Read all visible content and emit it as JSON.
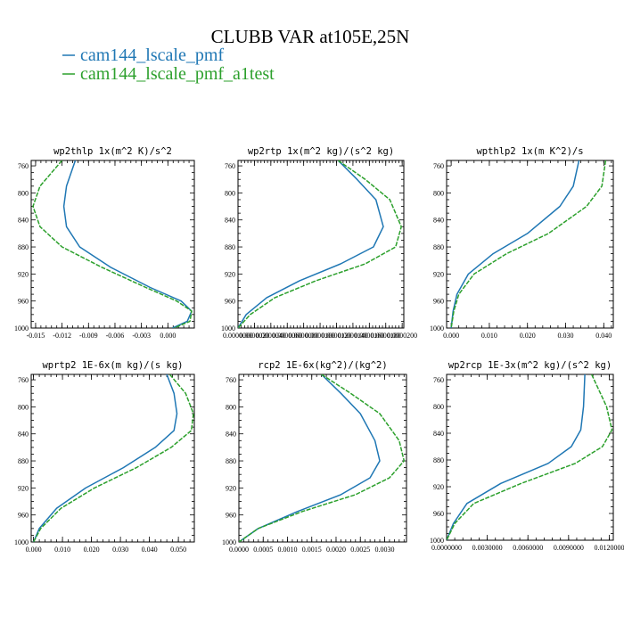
{
  "title": "CLUBB VAR at105E,25N",
  "colors": {
    "series1": "#1f77b4",
    "series2": "#2ca02c",
    "axis": "#000000"
  },
  "legend": [
    {
      "label": "cam144_lscale_pmf",
      "color": "#1f77b4"
    },
    {
      "label": "cam144_lscale_pmf_a1test",
      "color": "#2ca02c"
    }
  ],
  "chart_data": [
    {
      "type": "line",
      "title": "wp2thlp  1x(m^2 K)/s^2",
      "xlim": [
        -0.0155,
        0.003
      ],
      "ylim": [
        1000,
        752
      ],
      "y_reversed": true,
      "xticks": [
        -0.015,
        -0.012,
        -0.009,
        -0.006,
        -0.003,
        0.0
      ],
      "xtick_labels": [
        "-0.015",
        "-0.012",
        "-0.009",
        "-0.006",
        "-0.003",
        "0.000"
      ],
      "yticks": [
        760,
        800,
        840,
        880,
        920,
        960,
        1000
      ],
      "ytick_labels": [
        "760",
        "800",
        "840",
        "880",
        "920",
        "960",
        "1000"
      ],
      "series": [
        {
          "name": "cam144_lscale_pmf",
          "x": [
            -0.0105,
            -0.0115,
            -0.0118,
            -0.0115,
            -0.01,
            -0.0065,
            -0.002,
            0.0015,
            0.0027,
            0.0022,
            0.0005
          ],
          "y": [
            752,
            790,
            820,
            850,
            880,
            910,
            940,
            960,
            975,
            990,
            1000
          ]
        },
        {
          "name": "cam144_lscale_pmf_a1test",
          "x": [
            -0.012,
            -0.0145,
            -0.0153,
            -0.0145,
            -0.012,
            -0.0075,
            -0.0025,
            0.001,
            0.0027,
            0.0025,
            0.0007
          ],
          "y": [
            752,
            790,
            820,
            850,
            880,
            910,
            940,
            960,
            975,
            990,
            1000
          ]
        }
      ]
    },
    {
      "type": "line",
      "title": "wp2rtp  1x(m^2 kg)/(s^2 kg)",
      "xlim": [
        0.0,
        2.02e-05
      ],
      "ylim": [
        1000,
        752
      ],
      "y_reversed": true,
      "xticks": [
        0.0,
        2e-06,
        4e-06,
        6e-06,
        8e-06,
        1e-05,
        1.2e-05,
        1.4e-05,
        1.6e-05,
        1.8e-05,
        2e-05
      ],
      "xtick_labels": [
        "0.0000000",
        "0.0000020",
        "0.0000040",
        "0.0000060",
        "0.0000080",
        "0.0000100",
        "0.0000120",
        "0.0000140",
        "0.0000160",
        "0.0000180",
        "0.0000200"
      ],
      "yticks": [
        760,
        800,
        840,
        880,
        920,
        960,
        1000
      ],
      "ytick_labels": [
        "760",
        "800",
        "840",
        "880",
        "920",
        "960",
        "1000"
      ],
      "series": [
        {
          "name": "cam144_lscale_pmf",
          "x": [
            1.22e-05,
            1.45e-05,
            1.68e-05,
            1.77e-05,
            1.65e-05,
            1.25e-05,
            7.5e-06,
            3.5e-06,
            1e-06,
            0.0
          ],
          "y": [
            752,
            780,
            810,
            850,
            880,
            905,
            930,
            955,
            980,
            1000
          ]
        },
        {
          "name": "cam144_lscale_pmf_a1test",
          "x": [
            1.22e-05,
            1.55e-05,
            1.85e-05,
            1.99e-05,
            1.92e-05,
            1.55e-05,
            9.5e-06,
            4.5e-06,
            1.5e-06,
            0.0
          ],
          "y": [
            752,
            780,
            810,
            850,
            880,
            905,
            930,
            955,
            980,
            1000
          ]
        }
      ]
    },
    {
      "type": "line",
      "title": "wpthlp2  1x(m K^2)/s",
      "xlim": [
        -0.0012,
        0.0425
      ],
      "ylim": [
        1000,
        752
      ],
      "y_reversed": true,
      "xticks": [
        0.0,
        0.01,
        0.02,
        0.03,
        0.04
      ],
      "xtick_labels": [
        "0.000",
        "0.010",
        "0.020",
        "0.030",
        "0.040"
      ],
      "yticks": [
        760,
        800,
        840,
        880,
        920,
        960,
        1000
      ],
      "ytick_labels": [
        "760",
        "800",
        "840",
        "880",
        "920",
        "960",
        "1000"
      ],
      "series": [
        {
          "name": "cam144_lscale_pmf",
          "x": [
            0.0335,
            0.032,
            0.0285,
            0.02,
            0.011,
            0.0045,
            0.0015,
            0.0005,
            0.0
          ],
          "y": [
            752,
            790,
            820,
            860,
            890,
            920,
            950,
            975,
            1000
          ]
        },
        {
          "name": "cam144_lscale_pmf_a1test",
          "x": [
            0.0405,
            0.0395,
            0.0355,
            0.0255,
            0.0145,
            0.006,
            0.002,
            0.0007,
            0.0
          ],
          "y": [
            752,
            790,
            820,
            860,
            890,
            920,
            950,
            975,
            1000
          ]
        }
      ]
    },
    {
      "type": "line",
      "title": "wprtp2  1E-6x(m kg)/(s kg)",
      "xlim": [
        -0.0008,
        0.0555
      ],
      "ylim": [
        1000,
        752
      ],
      "y_reversed": true,
      "xticks": [
        0.0,
        0.01,
        0.02,
        0.03,
        0.04,
        0.05
      ],
      "xtick_labels": [
        "0.000",
        "0.010",
        "0.020",
        "0.030",
        "0.040",
        "0.050"
      ],
      "yticks": [
        760,
        800,
        840,
        880,
        920,
        960,
        1000
      ],
      "ytick_labels": [
        "760",
        "800",
        "840",
        "880",
        "920",
        "960",
        "1000"
      ],
      "series": [
        {
          "name": "cam144_lscale_pmf",
          "x": [
            0.046,
            0.0485,
            0.0495,
            0.0485,
            0.042,
            0.031,
            0.018,
            0.008,
            0.002,
            0.0
          ],
          "y": [
            752,
            780,
            810,
            835,
            860,
            890,
            920,
            950,
            980,
            1000
          ]
        },
        {
          "name": "cam144_lscale_pmf_a1test",
          "x": [
            0.047,
            0.0525,
            0.0552,
            0.0545,
            0.0475,
            0.0355,
            0.021,
            0.0095,
            0.0025,
            0.0
          ],
          "y": [
            752,
            780,
            810,
            835,
            860,
            890,
            920,
            950,
            980,
            1000
          ]
        }
      ]
    },
    {
      "type": "line",
      "title": "rcp2  1E-6x(kg^2)/(kg^2)",
      "xlim": [
        0.0,
        0.00345
      ],
      "ylim": [
        1000,
        752
      ],
      "y_reversed": true,
      "xticks": [
        0.0,
        0.0005,
        0.001,
        0.0015,
        0.002,
        0.0025,
        0.003
      ],
      "xtick_labels": [
        "0.0000",
        "0.0005",
        "0.0010",
        "0.0015",
        "0.0020",
        "0.0025",
        "0.0030"
      ],
      "yticks": [
        760,
        800,
        840,
        880,
        920,
        960,
        1000
      ],
      "ytick_labels": [
        "760",
        "800",
        "840",
        "880",
        "920",
        "960",
        "1000"
      ],
      "series": [
        {
          "name": "cam144_lscale_pmf",
          "x": [
            0.0017,
            0.0021,
            0.0025,
            0.0028,
            0.0029,
            0.0027,
            0.0021,
            0.0012,
            0.0004,
            0.0
          ],
          "y": [
            752,
            780,
            810,
            850,
            880,
            905,
            930,
            955,
            980,
            1000
          ]
        },
        {
          "name": "cam144_lscale_pmf_a1test",
          "x": [
            0.0017,
            0.0023,
            0.0029,
            0.0033,
            0.0034,
            0.0031,
            0.0024,
            0.0013,
            0.0004,
            0.0
          ],
          "y": [
            752,
            780,
            810,
            850,
            880,
            905,
            930,
            955,
            980,
            1000
          ]
        }
      ]
    },
    {
      "type": "line",
      "title": "wp2rcp  1E-3x(m^2 kg)/(s^2 kg)",
      "xlim": [
        0.0,
        0.0123
      ],
      "ylim": [
        1000,
        752
      ],
      "y_reversed": true,
      "xticks": [
        0.0,
        0.003,
        0.006,
        0.009,
        0.012
      ],
      "xtick_labels": [
        "0.0000000",
        "0.0030000",
        "0.0060000",
        "0.0090000",
        "0.0120000"
      ],
      "yticks": [
        760,
        800,
        840,
        880,
        920,
        960,
        1000
      ],
      "ytick_labels": [
        "760",
        "800",
        "840",
        "880",
        "920",
        "960",
        "1000"
      ],
      "series": [
        {
          "name": "cam144_lscale_pmf",
          "x": [
            0.0102,
            0.0101,
            0.0099,
            0.0092,
            0.0075,
            0.004,
            0.0015,
            0.0005,
            0.0
          ],
          "y": [
            752,
            800,
            835,
            860,
            885,
            915,
            945,
            975,
            1000
          ]
        },
        {
          "name": "cam144_lscale_pmf_a1test",
          "x": [
            0.0107,
            0.0118,
            0.0122,
            0.0115,
            0.0095,
            0.0055,
            0.002,
            0.0006,
            0.0
          ],
          "y": [
            752,
            800,
            835,
            860,
            885,
            915,
            945,
            975,
            1000
          ]
        }
      ]
    }
  ]
}
